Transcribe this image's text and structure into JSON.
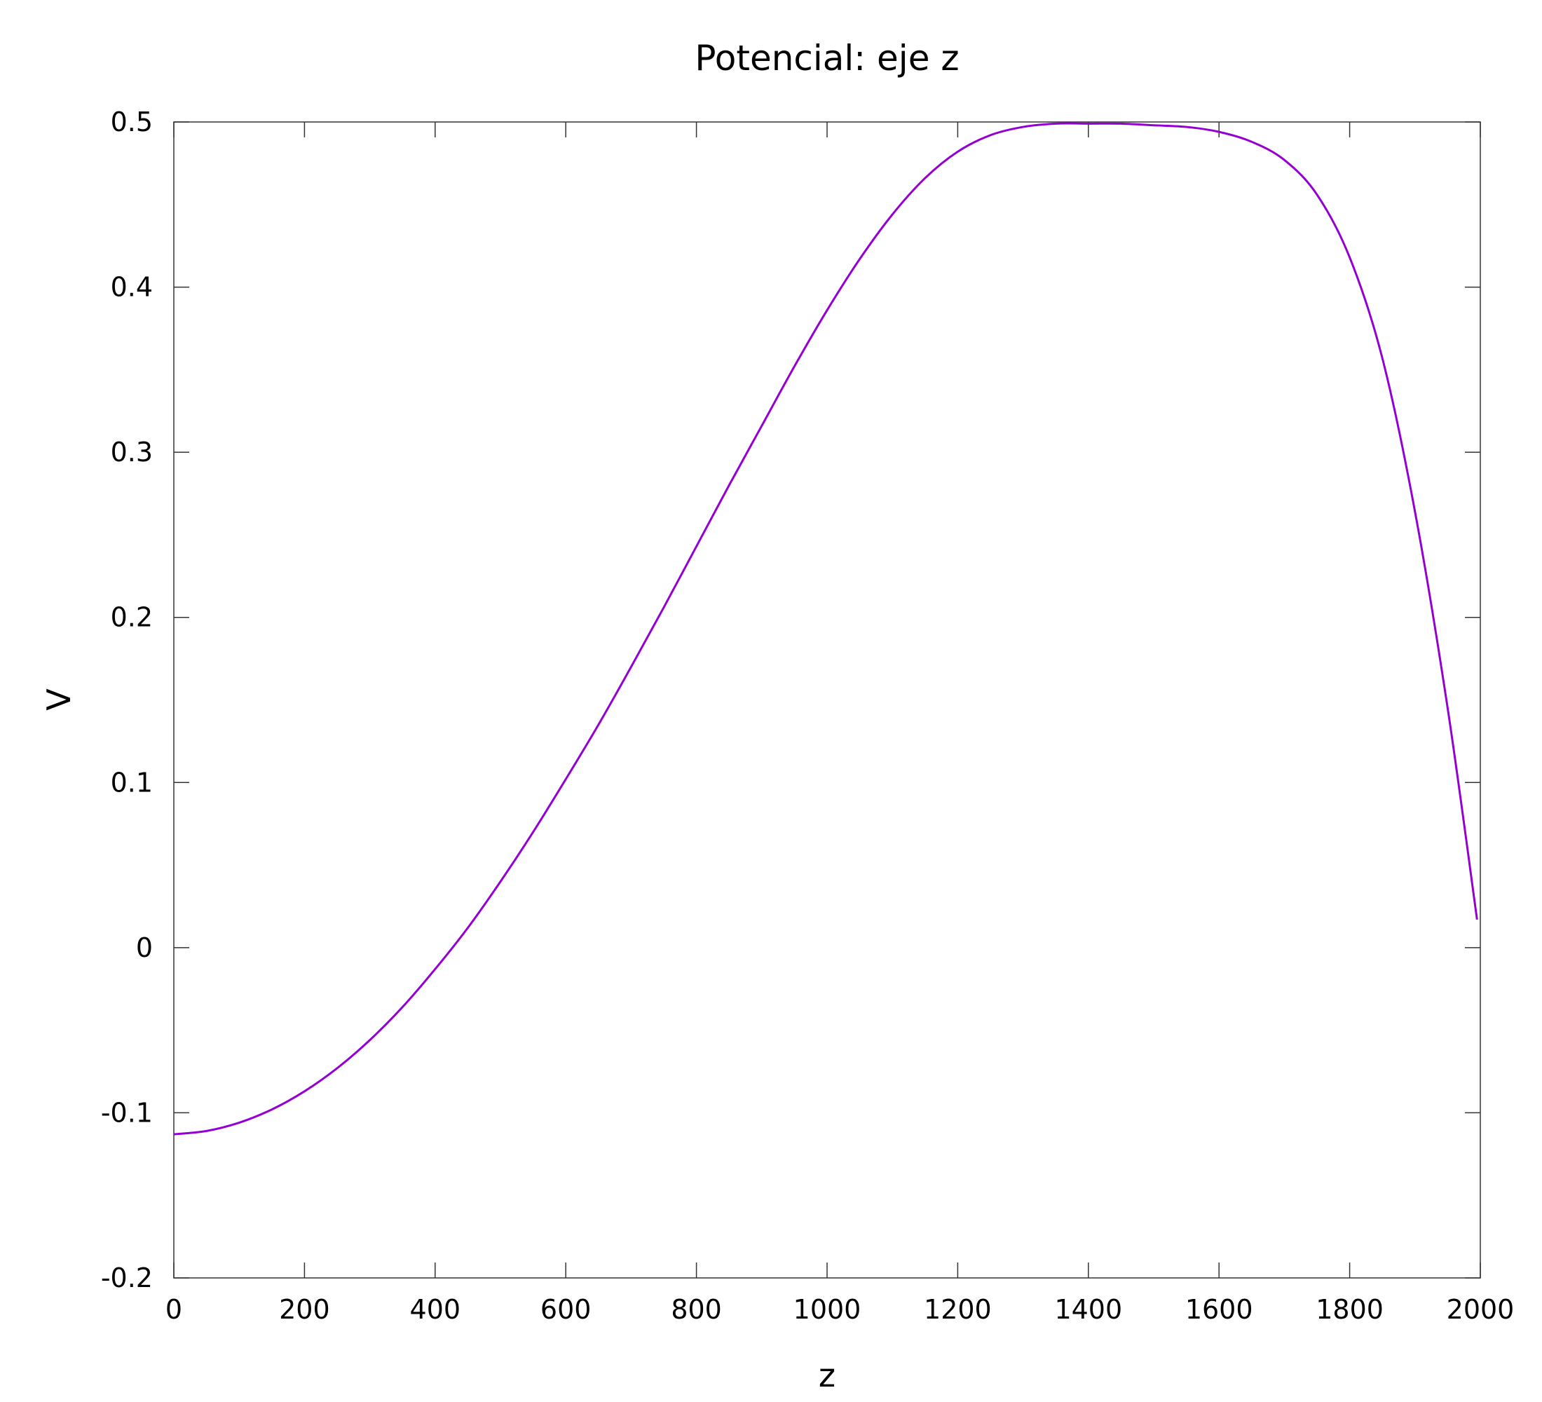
{
  "chart_data": {
    "type": "line",
    "title": "Potencial: eje z",
    "xlabel": "z",
    "ylabel": "V",
    "xlim": [
      0,
      2000
    ],
    "ylim": [
      -0.2,
      0.5
    ],
    "xticks": [
      0,
      200,
      400,
      600,
      800,
      1000,
      1200,
      1400,
      1600,
      1800,
      2000
    ],
    "yticks": [
      -0.2,
      -0.1,
      0,
      0.1,
      0.2,
      0.3,
      0.4,
      0.5
    ],
    "xtick_labels": [
      "0",
      "200",
      "400",
      "600",
      "800",
      "1000",
      "1200",
      "1400",
      "1600",
      "1800",
      "2000"
    ],
    "ytick_labels": [
      "-0.2",
      "-0.1",
      "0",
      "0.1",
      "0.2",
      "0.3",
      "0.4",
      "0.5"
    ],
    "grid": false,
    "series": [
      {
        "color": "#9400d3",
        "x": [
          0,
          50,
          100,
          150,
          200,
          250,
          300,
          350,
          400,
          450,
          500,
          550,
          600,
          650,
          700,
          750,
          800,
          850,
          900,
          950,
          1000,
          1050,
          1100,
          1150,
          1200,
          1250,
          1300,
          1350,
          1400,
          1450,
          1500,
          1550,
          1600,
          1650,
          1700,
          1750,
          1800,
          1850,
          1900,
          1950,
          1995
        ],
        "y": [
          -0.113,
          -0.111,
          -0.106,
          -0.098,
          -0.087,
          -0.073,
          -0.056,
          -0.036,
          -0.013,
          0.012,
          0.04,
          0.07,
          0.102,
          0.135,
          0.17,
          0.206,
          0.243,
          0.28,
          0.316,
          0.352,
          0.386,
          0.417,
          0.444,
          0.466,
          0.482,
          0.492,
          0.497,
          0.499,
          0.499,
          0.499,
          0.498,
          0.497,
          0.494,
          0.488,
          0.477,
          0.456,
          0.418,
          0.357,
          0.264,
          0.145,
          0.017
        ]
      }
    ]
  }
}
